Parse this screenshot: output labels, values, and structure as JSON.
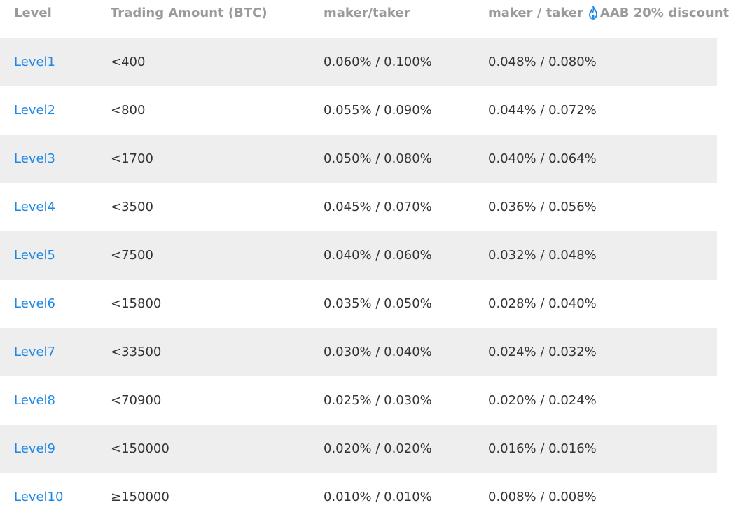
{
  "header": {
    "level": "Level",
    "amount": "Trading Amount (BTC)",
    "fee": "maker/taker",
    "discount_prefix": "maker / taker",
    "discount_badge": "AAB 20% discount",
    "flame_icon": "flame-icon",
    "flame_color": "#1e88e5"
  },
  "rows": [
    {
      "level": "Level1",
      "amount": "<400",
      "fee": "0.060% / 0.100%",
      "discount": "0.048% / 0.080%"
    },
    {
      "level": "Level2",
      "amount": "<800",
      "fee": "0.055% / 0.090%",
      "discount": "0.044% / 0.072%"
    },
    {
      "level": "Level3",
      "amount": "<1700",
      "fee": "0.050% / 0.080%",
      "discount": "0.040% / 0.064%"
    },
    {
      "level": "Level4",
      "amount": "<3500",
      "fee": "0.045% / 0.070%",
      "discount": "0.036% / 0.056%"
    },
    {
      "level": "Level5",
      "amount": "<7500",
      "fee": "0.040% / 0.060%",
      "discount": "0.032% / 0.048%"
    },
    {
      "level": "Level6",
      "amount": "<15800",
      "fee": "0.035% / 0.050%",
      "discount": "0.028% / 0.040%"
    },
    {
      "level": "Level7",
      "amount": "<33500",
      "fee": "0.030% / 0.040%",
      "discount": "0.024% / 0.032%"
    },
    {
      "level": "Level8",
      "amount": "<70900",
      "fee": "0.025% / 0.030%",
      "discount": "0.020% / 0.024%"
    },
    {
      "level": "Level9",
      "amount": "<150000",
      "fee": "0.020% / 0.020%",
      "discount": "0.016% / 0.016%"
    },
    {
      "level": "Level10",
      "amount": "≥150000",
      "fee": "0.010% / 0.010%",
      "discount": "0.008% / 0.008%"
    }
  ],
  "colors": {
    "level_link": "#1e88e5",
    "header_text": "#9a9a9a",
    "body_text": "#333333",
    "shaded_row": "#eeeeee"
  }
}
